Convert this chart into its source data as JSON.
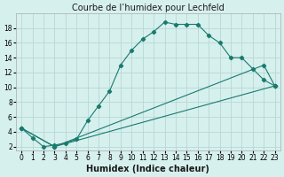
{
  "title": "Courbe de l’humidex pour Lechfeld",
  "xlabel": "Humidex (Indice chaleur)",
  "background_color": "#d6f0ee",
  "grid_color": "#b8d8d4",
  "line_color": "#1a7a6e",
  "line1_x": [
    0,
    1,
    2,
    3,
    4,
    5,
    6,
    7,
    8,
    9,
    10,
    11,
    12,
    13,
    14,
    15,
    16,
    17,
    18,
    19,
    20,
    21,
    22,
    23
  ],
  "line1_y": [
    4.5,
    3.2,
    2.0,
    2.2,
    2.5,
    3.0,
    5.5,
    7.5,
    9.5,
    13.0,
    15.0,
    16.5,
    17.5,
    18.8,
    18.5,
    18.5,
    18.5,
    17.0,
    16.0,
    14.0,
    14.0,
    12.5,
    11.0,
    10.2
  ],
  "line2_x": [
    0,
    3,
    23
  ],
  "line2_y": [
    4.5,
    2.0,
    10.2
  ],
  "line3_x": [
    0,
    3,
    22,
    23
  ],
  "line3_y": [
    4.5,
    2.0,
    13.0,
    10.2
  ],
  "ylim_min": 1.5,
  "ylim_max": 20.0,
  "xlim_min": -0.5,
  "xlim_max": 23.5,
  "yticks": [
    2,
    4,
    6,
    8,
    10,
    12,
    14,
    16,
    18
  ],
  "xticks": [
    0,
    1,
    2,
    3,
    4,
    5,
    6,
    7,
    8,
    9,
    10,
    11,
    12,
    13,
    14,
    15,
    16,
    17,
    18,
    19,
    20,
    21,
    22,
    23
  ],
  "title_fontsize": 7,
  "xlabel_fontsize": 7,
  "tick_fontsize": 5.5
}
